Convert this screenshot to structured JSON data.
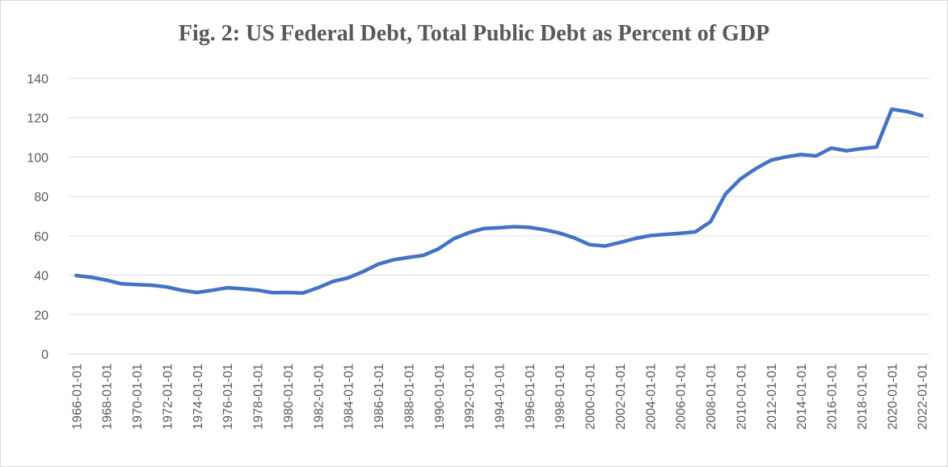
{
  "chart_data": {
    "type": "line",
    "title": "Fig. 2: US Federal Debt, Total Public Debt as Percent of GDP",
    "xlabel": "",
    "ylabel": "",
    "ylim": [
      0,
      140
    ],
    "y_ticks": [
      0,
      20,
      40,
      60,
      80,
      100,
      120,
      140
    ],
    "grid": true,
    "legend": "none",
    "x": [
      "1966-01-01",
      "1967-01-01",
      "1968-01-01",
      "1969-01-01",
      "1970-01-01",
      "1971-01-01",
      "1972-01-01",
      "1973-01-01",
      "1974-01-01",
      "1975-01-01",
      "1976-01-01",
      "1977-01-01",
      "1978-01-01",
      "1979-01-01",
      "1980-01-01",
      "1981-01-01",
      "1982-01-01",
      "1983-01-01",
      "1984-01-01",
      "1985-01-01",
      "1986-01-01",
      "1987-01-01",
      "1988-01-01",
      "1989-01-01",
      "1990-01-01",
      "1991-01-01",
      "1992-01-01",
      "1993-01-01",
      "1994-01-01",
      "1995-01-01",
      "1996-01-01",
      "1997-01-01",
      "1998-01-01",
      "1999-01-01",
      "2000-01-01",
      "2001-01-01",
      "2002-01-01",
      "2003-01-01",
      "2004-01-01",
      "2005-01-01",
      "2006-01-01",
      "2007-01-01",
      "2008-01-01",
      "2009-01-01",
      "2010-01-01",
      "2011-01-01",
      "2012-01-01",
      "2013-01-01",
      "2014-01-01",
      "2015-01-01",
      "2016-01-01",
      "2017-01-01",
      "2018-01-01",
      "2019-01-01",
      "2020-01-01",
      "2021-01-01",
      "2022-01-01"
    ],
    "x_tick_labels": [
      "1966-01-01",
      "1968-01-01",
      "1970-01-01",
      "1972-01-01",
      "1974-01-01",
      "1976-01-01",
      "1978-01-01",
      "1980-01-01",
      "1982-01-01",
      "1984-01-01",
      "1986-01-01",
      "1988-01-01",
      "1990-01-01",
      "1992-01-01",
      "1994-01-01",
      "1996-01-01",
      "1998-01-01",
      "2000-01-01",
      "2002-01-01",
      "2004-01-01",
      "2006-01-01",
      "2008-01-01",
      "2010-01-01",
      "2012-01-01",
      "2014-01-01",
      "2016-01-01",
      "2018-01-01",
      "2020-01-01",
      "2022-01-01"
    ],
    "series": [
      {
        "color": "#4472c4",
        "values": [
          39.8,
          38.9,
          37.5,
          35.6,
          35.2,
          34.9,
          34.0,
          32.3,
          31.2,
          32.3,
          33.6,
          33.1,
          32.4,
          31.1,
          31.2,
          30.9,
          33.6,
          36.8,
          38.6,
          41.8,
          45.6,
          47.8,
          49.0,
          50.1,
          53.4,
          58.5,
          61.6,
          63.7,
          64.1,
          64.6,
          64.3,
          63.1,
          61.4,
          58.9,
          55.5,
          54.8,
          56.6,
          58.6,
          60.1,
          60.7,
          61.3,
          62.0,
          67.1,
          81.3,
          89.0,
          94.1,
          98.4,
          100.1,
          101.3,
          100.6,
          104.6,
          103.2,
          104.3,
          105.1,
          124.3,
          123.2,
          121.1
        ]
      }
    ]
  }
}
